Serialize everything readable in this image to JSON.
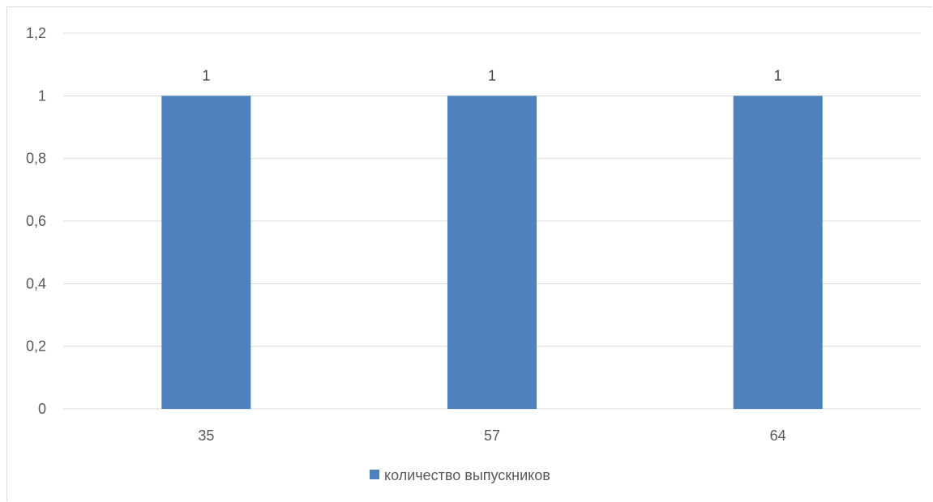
{
  "chart_data": {
    "type": "bar",
    "categories": [
      "35",
      "57",
      "64"
    ],
    "series": [
      {
        "name": "количество выпускников",
        "values": [
          1,
          1,
          1
        ],
        "color": "#4f81bd"
      }
    ],
    "ylim": [
      0,
      1.2
    ],
    "y_ticks": [
      "0",
      "0,2",
      "0,4",
      "0,6",
      "0,8",
      "1",
      "1,2"
    ],
    "data_labels": [
      "1",
      "1",
      "1"
    ],
    "grid": true,
    "legend_position": "bottom",
    "gridline_color": "#d9d9d9"
  }
}
